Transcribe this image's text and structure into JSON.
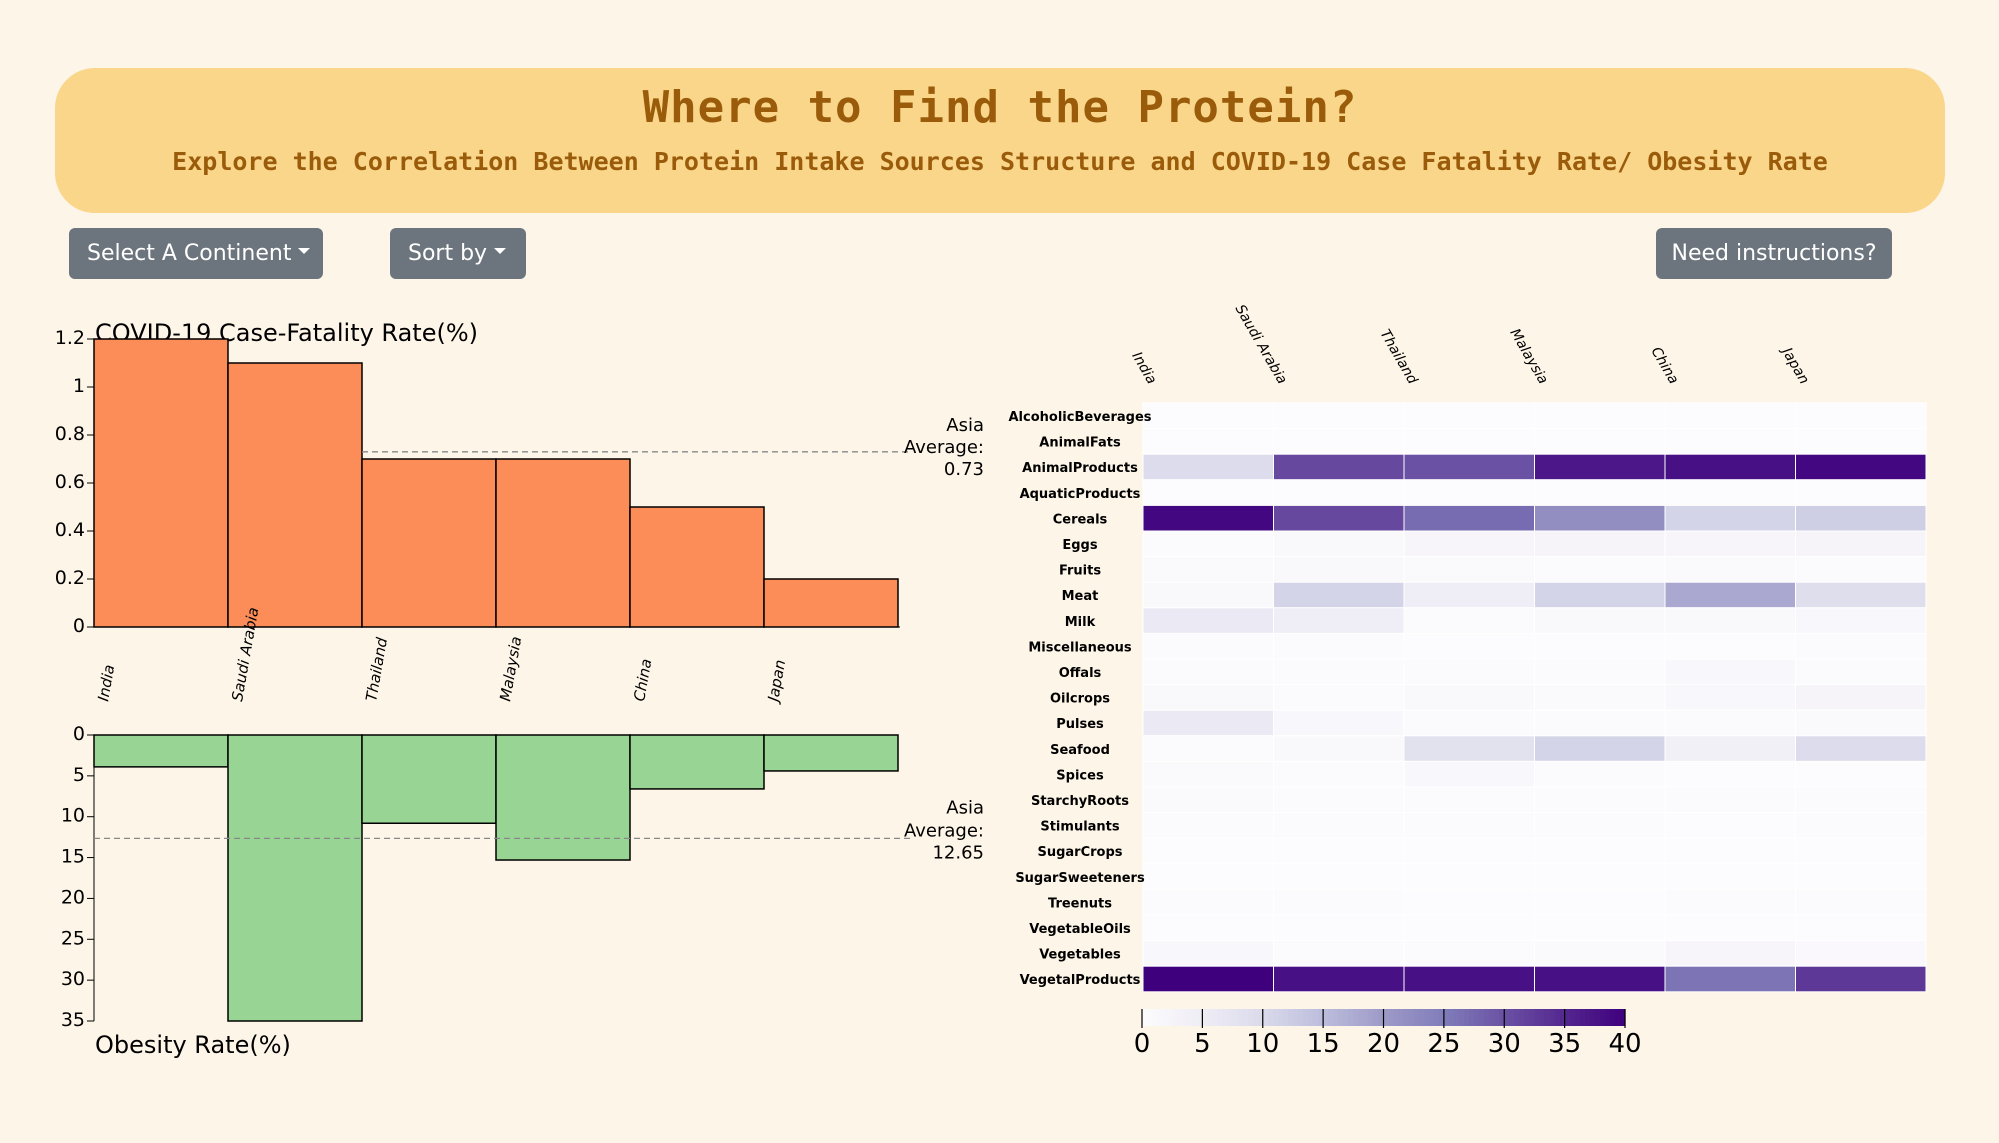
{
  "header": {
    "title": "Where to Find the Protein?",
    "subtitle": "Explore the Correlation Between Protein Intake Sources Structure and COVID-19 Case Fatality Rate/ Obesity Rate"
  },
  "controls": {
    "continent_label": "Select A Continent",
    "sort_label": "Sort by",
    "help_label": "Need instructions?"
  },
  "colors": {
    "fatality_bar": "#fc8d59",
    "obesity_bar": "#98d594",
    "heat_low": "#fcfbfd",
    "heat_high": "#3f007d"
  },
  "chart_data": [
    {
      "type": "bar",
      "title": "COVID-19 Case-Fatality Rate(%)",
      "categories": [
        "India",
        "Saudi Arabia",
        "Thailand",
        "Malaysia",
        "China",
        "Japan"
      ],
      "values": [
        1.2,
        1.1,
        0.7,
        0.7,
        0.5,
        0.2
      ],
      "ylim": [
        0,
        1.2
      ],
      "yticks": [
        "0",
        "0.2",
        "0.4",
        "0.6",
        "0.8",
        "1",
        "1.2"
      ],
      "average": {
        "label_1": "Asia",
        "label_2": "Average:",
        "value": 0.73,
        "value_label": "0.73"
      }
    },
    {
      "type": "bar",
      "title": "Obesity Rate(%)",
      "categories": [
        "India",
        "Saudi Arabia",
        "Thailand",
        "Malaysia",
        "China",
        "Japan"
      ],
      "values": [
        3.9,
        35.0,
        10.8,
        15.3,
        6.6,
        4.4
      ],
      "ylim": [
        0,
        35
      ],
      "yticks": [
        "0",
        "5",
        "10",
        "15",
        "20",
        "25",
        "30",
        "35"
      ],
      "average": {
        "label_1": "Asia",
        "label_2": "Average:",
        "value": 12.65,
        "value_label": "12.65"
      }
    },
    {
      "type": "heatmap",
      "columns": [
        "India",
        "Saudi Arabia",
        "Thailand",
        "Malaysia",
        "China",
        "Japan"
      ],
      "rows": [
        "AlcoholicBeverages",
        "AnimalFats",
        "AnimalProducts",
        "AquaticProducts",
        "Cereals",
        "Eggs",
        "Fruits",
        "Meat",
        "Milk",
        "Miscellaneous",
        "Offals",
        "Oilcrops",
        "Pulses",
        "Seafood",
        "Spices",
        "StarchyRoots",
        "Stimulants",
        "SugarCrops",
        "SugarSweeteners",
        "Treenuts",
        "VegetableOils",
        "Vegetables",
        "VegetalProducts"
      ],
      "values": [
        [
          0.1,
          0.0,
          0.1,
          0.0,
          0.1,
          0.1
        ],
        [
          0.1,
          0.1,
          0.0,
          0.0,
          0.1,
          0.0
        ],
        [
          9.5,
          31.0,
          30.0,
          37.0,
          38.0,
          39.0
        ],
        [
          0.0,
          0.0,
          0.0,
          0.0,
          0.0,
          0.0
        ],
        [
          39.0,
          31.0,
          27.0,
          22.0,
          11.0,
          12.0
        ],
        [
          0.5,
          1.0,
          2.0,
          2.5,
          2.0,
          2.5
        ],
        [
          0.6,
          1.0,
          0.6,
          0.5,
          0.6,
          0.3
        ],
        [
          1.0,
          11.0,
          5.0,
          11.0,
          18.0,
          9.0
        ],
        [
          6.0,
          5.0,
          0.5,
          1.0,
          1.0,
          1.5
        ],
        [
          0.2,
          0.3,
          0.1,
          0.1,
          0.1,
          0.2
        ],
        [
          0.2,
          0.5,
          0.3,
          0.3,
          1.5,
          0.3
        ],
        [
          1.0,
          0.4,
          1.0,
          0.8,
          1.5,
          2.5
        ],
        [
          6.0,
          1.5,
          0.5,
          0.5,
          0.5,
          0.6
        ],
        [
          0.5,
          1.0,
          8.0,
          11.0,
          4.0,
          9.5
        ],
        [
          0.6,
          0.3,
          1.5,
          0.3,
          0.1,
          0.1
        ],
        [
          0.8,
          0.3,
          0.2,
          0.2,
          0.5,
          0.4
        ],
        [
          0.2,
          0.3,
          0.2,
          0.3,
          0.1,
          0.3
        ],
        [
          0.0,
          0.0,
          0.1,
          0.0,
          0.0,
          0.0
        ],
        [
          0.0,
          0.0,
          0.0,
          0.0,
          0.0,
          0.0
        ],
        [
          0.3,
          0.3,
          0.1,
          0.1,
          0.3,
          0.2
        ],
        [
          0.0,
          0.0,
          0.0,
          0.0,
          0.0,
          0.0
        ],
        [
          1.5,
          0.5,
          0.4,
          0.8,
          2.0,
          0.9
        ],
        [
          40.0,
          38.0,
          38.0,
          38.0,
          26.0,
          33.0
        ]
      ],
      "scale": {
        "min": 0,
        "max": 40,
        "ticks": [
          "0",
          "5",
          "10",
          "15",
          "20",
          "25",
          "30",
          "35",
          "40"
        ]
      }
    }
  ]
}
